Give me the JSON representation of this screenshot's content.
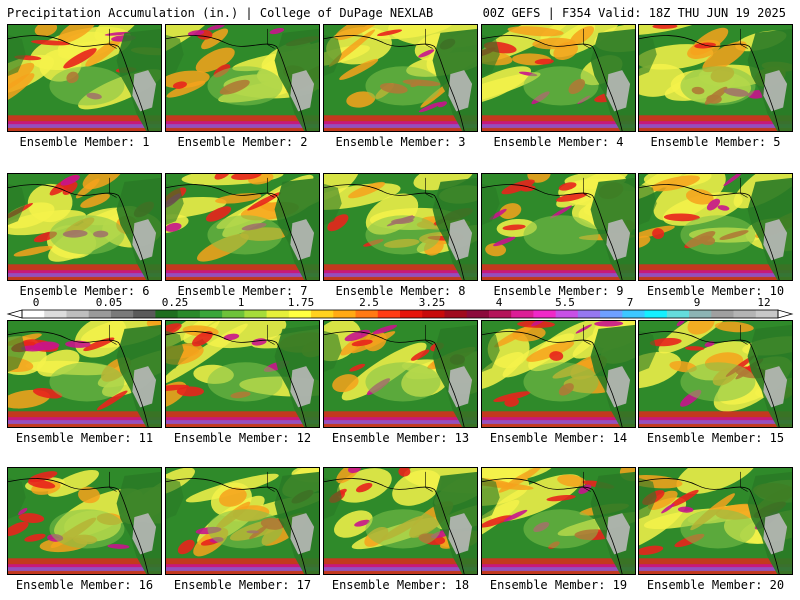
{
  "header": {
    "title": "Precipitation Accumulation (in.) | College of DuPage NEXLAB",
    "run_info": "00Z GEFS | F354 Valid: 18Z THU JUN 19 2025"
  },
  "colors": {
    "ocean_green": "#2f8a2a",
    "light_green": "#7fc24a",
    "yellow": "#f4f24a",
    "orange": "#f6a21c",
    "red": "#e8241c",
    "magenta": "#c8148c",
    "purple": "#8a5ad0",
    "gray": "#b8b8b8",
    "land_dark_green": "#2a7a26"
  },
  "colorbar": {
    "labels": [
      "0",
      "0.05",
      "0.25",
      "1",
      "1.75",
      "2.5",
      "3.25",
      "4",
      "5.5",
      "7",
      "9",
      "12"
    ],
    "colors": [
      "#ffffff",
      "#dcdcdc",
      "#bebebe",
      "#9a9a9a",
      "#7a7a7a",
      "#5a5a5a",
      "#1e6e1e",
      "#2a8a2a",
      "#3aa63a",
      "#6ec23a",
      "#a6dc3a",
      "#e6f03a",
      "#ffff40",
      "#ffd21e",
      "#ffaa14",
      "#ff7a14",
      "#ff3c14",
      "#e6140a",
      "#c80a0a",
      "#a00a1e",
      "#8c0a3c",
      "#b4145a",
      "#dc1e96",
      "#f028c8",
      "#c850e6",
      "#9678f0",
      "#6ea0ff",
      "#3cc8ff",
      "#14f0ff",
      "#64dcdc",
      "#8cb4b4",
      "#a0a0a0",
      "#b4b4b4",
      "#c8c8c8"
    ]
  },
  "members": [
    {
      "label": "Ensemble Member: 1"
    },
    {
      "label": "Ensemble Member: 2"
    },
    {
      "label": "Ensemble Member: 3"
    },
    {
      "label": "Ensemble Member: 4"
    },
    {
      "label": "Ensemble Member: 5"
    },
    {
      "label": "Ensemble Member: 6"
    },
    {
      "label": "Ensemble Member: 7"
    },
    {
      "label": "Ensemble Member: 8"
    },
    {
      "label": "Ensemble Member: 9"
    },
    {
      "label": "Ensemble Member: 10"
    },
    {
      "label": "Ensemble Member: 11"
    },
    {
      "label": "Ensemble Member: 12"
    },
    {
      "label": "Ensemble Member: 13"
    },
    {
      "label": "Ensemble Member: 14"
    },
    {
      "label": "Ensemble Member: 15"
    },
    {
      "label": "Ensemble Member: 16"
    },
    {
      "label": "Ensemble Member: 17"
    },
    {
      "label": "Ensemble Member: 18"
    },
    {
      "label": "Ensemble Member: 19"
    },
    {
      "label": "Ensemble Member: 20"
    }
  ]
}
